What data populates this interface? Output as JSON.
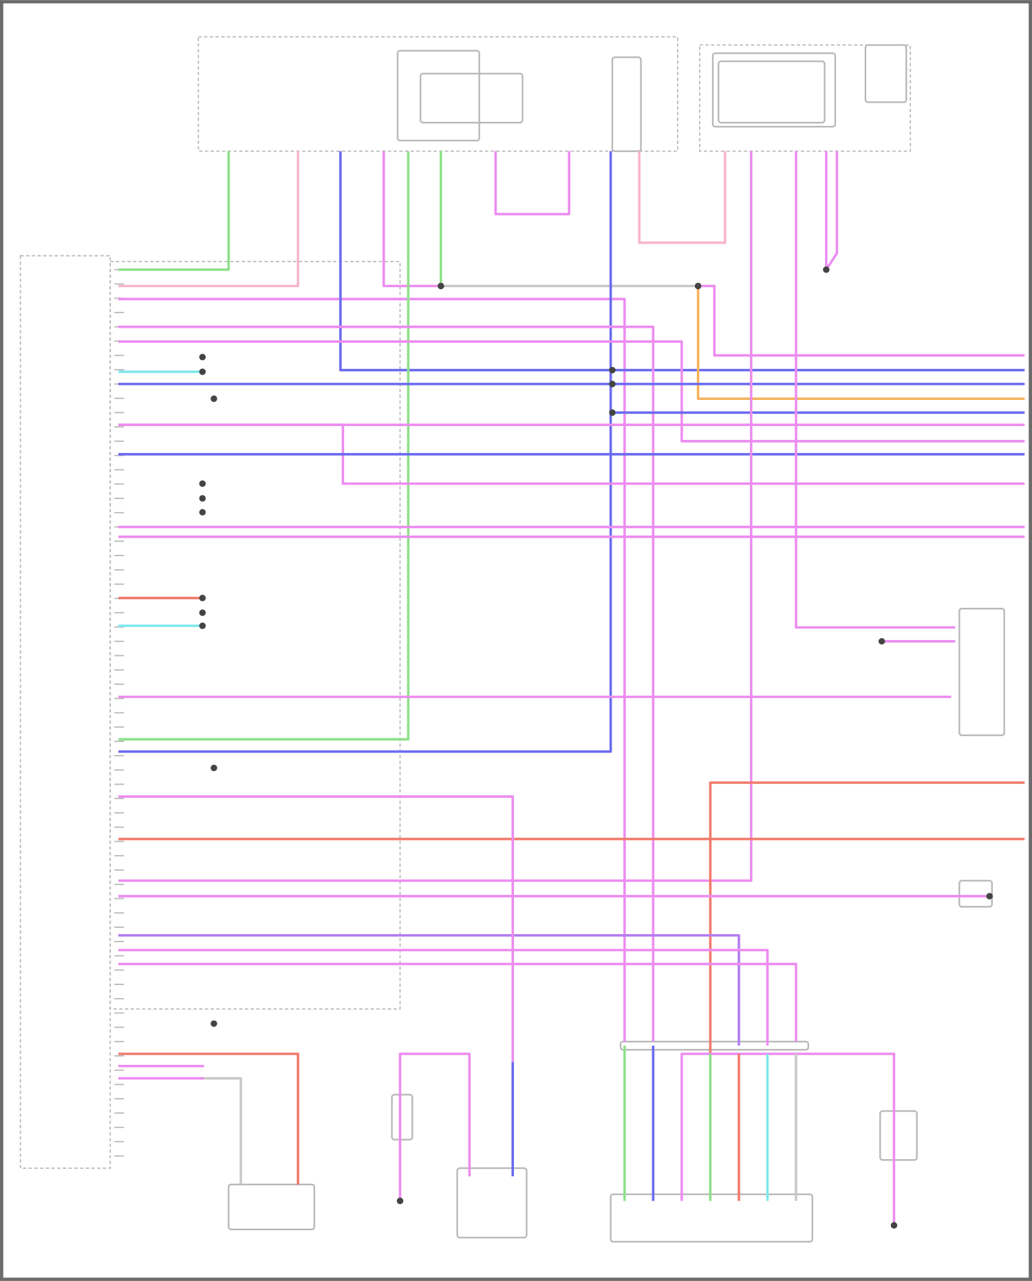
{
  "diagram": {
    "type": "wiring-diagram",
    "text_legible": false,
    "colors": {
      "frame": "#6b6b6b",
      "outline": "#b8b8b8",
      "green": "#8ee08a",
      "pink": "#f7b6c8",
      "magenta": "#ec8cf0",
      "blue": "#6a6af0",
      "orange": "#f5b25a",
      "red": "#f07a6a",
      "cyan": "#7ee8ec",
      "gray": "#c8c8c8",
      "violet": "#b27af0"
    }
  }
}
